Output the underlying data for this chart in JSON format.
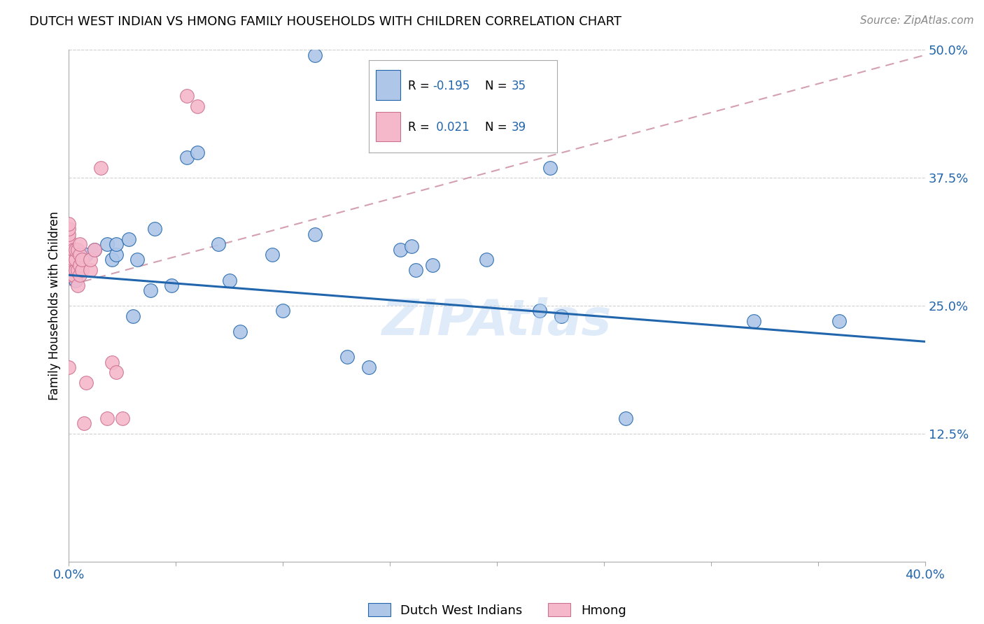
{
  "title": "DUTCH WEST INDIAN VS HMONG FAMILY HOUSEHOLDS WITH CHILDREN CORRELATION CHART",
  "source": "Source: ZipAtlas.com",
  "ylabel": "Family Households with Children",
  "xmin": 0.0,
  "xmax": 0.4,
  "ymin": 0.0,
  "ymax": 0.5,
  "yticks": [
    0.125,
    0.25,
    0.375,
    0.5
  ],
  "ytick_labels": [
    "12.5%",
    "25.0%",
    "37.5%",
    "50.0%"
  ],
  "xticks": [
    0.0,
    0.05,
    0.1,
    0.15,
    0.2,
    0.25,
    0.3,
    0.35,
    0.4
  ],
  "xtick_labels": [
    "0.0%",
    "",
    "",
    "",
    "",
    "",
    "",
    "",
    "40.0%"
  ],
  "blue_R": -0.195,
  "blue_N": 35,
  "pink_R": 0.021,
  "pink_N": 39,
  "blue_color": "#aec6e8",
  "pink_color": "#f5b8cb",
  "blue_line_color": "#2166ac",
  "pink_line_color": "#d4a0b0",
  "watermark": "ZIPAtlas",
  "blue_scatter_x": [
    0.003,
    0.008,
    0.012,
    0.018,
    0.02,
    0.022,
    0.022,
    0.028,
    0.03,
    0.032,
    0.038,
    0.04,
    0.048,
    0.055,
    0.06,
    0.07,
    0.075,
    0.08,
    0.095,
    0.1,
    0.115,
    0.13,
    0.14,
    0.155,
    0.16,
    0.162,
    0.17,
    0.195,
    0.22,
    0.225,
    0.23,
    0.26,
    0.32,
    0.36,
    0.115
  ],
  "blue_scatter_y": [
    0.275,
    0.3,
    0.305,
    0.31,
    0.295,
    0.3,
    0.31,
    0.315,
    0.24,
    0.295,
    0.265,
    0.325,
    0.27,
    0.395,
    0.4,
    0.31,
    0.275,
    0.225,
    0.3,
    0.245,
    0.32,
    0.2,
    0.19,
    0.305,
    0.308,
    0.285,
    0.29,
    0.295,
    0.245,
    0.385,
    0.24,
    0.14,
    0.235,
    0.235,
    0.495
  ],
  "pink_scatter_x": [
    0.0,
    0.0,
    0.0,
    0.0,
    0.0,
    0.0,
    0.0,
    0.0,
    0.0,
    0.0,
    0.0,
    0.0,
    0.002,
    0.002,
    0.002,
    0.003,
    0.003,
    0.003,
    0.004,
    0.004,
    0.004,
    0.005,
    0.005,
    0.005,
    0.005,
    0.006,
    0.006,
    0.007,
    0.008,
    0.01,
    0.01,
    0.012,
    0.015,
    0.018,
    0.02,
    0.022,
    0.025,
    0.055,
    0.06
  ],
  "pink_scatter_y": [
    0.28,
    0.285,
    0.29,
    0.295,
    0.3,
    0.305,
    0.31,
    0.315,
    0.32,
    0.325,
    0.33,
    0.19,
    0.28,
    0.295,
    0.305,
    0.285,
    0.295,
    0.305,
    0.27,
    0.285,
    0.305,
    0.28,
    0.29,
    0.3,
    0.31,
    0.285,
    0.295,
    0.135,
    0.175,
    0.285,
    0.295,
    0.305,
    0.385,
    0.14,
    0.195,
    0.185,
    0.14,
    0.455,
    0.445
  ],
  "background_color": "#ffffff",
  "grid_color": "#d0d0d0",
  "blue_line_y0": 0.28,
  "blue_line_y1": 0.215,
  "pink_line_y0": 0.27,
  "pink_line_y1": 0.495
}
